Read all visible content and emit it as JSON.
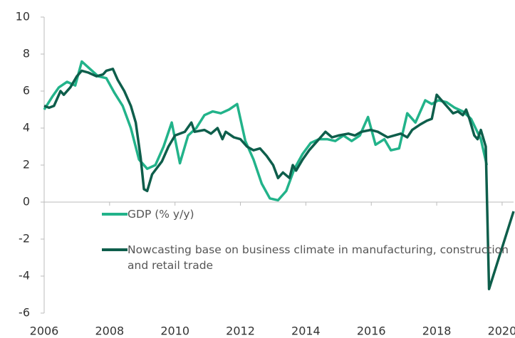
{
  "chart_data": {
    "type": "line",
    "xlim": [
      2006,
      2020.35
    ],
    "xticks": [
      2006,
      2008,
      2010,
      2012,
      2014,
      2016,
      2018,
      2020
    ],
    "ylim": [
      -6,
      10
    ],
    "yticks": [
      -6,
      -4,
      -2,
      0,
      2,
      4,
      6,
      8,
      10
    ],
    "legend": "inside",
    "series": [
      {
        "name": "GDP (% y/y)",
        "color": "#22b38a",
        "x": [
          2006.0,
          2006.25,
          2006.45,
          2006.7,
          2006.95,
          2007.15,
          2007.4,
          2007.65,
          2007.9,
          2008.15,
          2008.4,
          2008.65,
          2008.9,
          2009.15,
          2009.4,
          2009.65,
          2009.9,
          2010.15,
          2010.4,
          2010.65,
          2010.9,
          2011.15,
          2011.4,
          2011.65,
          2011.9,
          2012.15,
          2012.4,
          2012.65,
          2012.9,
          2013.15,
          2013.4,
          2013.65,
          2013.9,
          2014.15,
          2014.4,
          2014.65,
          2014.9,
          2015.15,
          2015.4,
          2015.65,
          2015.9,
          2016.13,
          2016.4,
          2016.6,
          2016.85,
          2017.1,
          2017.35,
          2017.65,
          2017.85,
          2018.05,
          2018.3,
          2018.55,
          2018.8,
          2019.05,
          2019.35,
          2019.53
        ],
        "values": [
          5.0,
          5.7,
          6.2,
          6.5,
          6.3,
          7.6,
          7.2,
          6.8,
          6.7,
          5.9,
          5.2,
          4.0,
          2.3,
          1.8,
          2.0,
          3.0,
          4.3,
          2.1,
          3.6,
          4.0,
          4.7,
          4.9,
          4.8,
          5.0,
          5.3,
          3.3,
          2.3,
          1.0,
          0.2,
          0.1,
          0.6,
          1.8,
          2.6,
          3.2,
          3.4,
          3.4,
          3.3,
          3.6,
          3.3,
          3.6,
          4.6,
          3.1,
          3.4,
          2.8,
          2.9,
          4.8,
          4.3,
          5.5,
          5.3,
          5.5,
          5.4,
          5.1,
          4.9,
          4.5,
          3.4,
          2.0
        ]
      },
      {
        "name": "Nowcasting base on business climate in manufacturing, construction and retail trade",
        "color": "#0e5e4b",
        "x": [
          2006.0,
          2006.15,
          2006.3,
          2006.5,
          2006.6,
          2006.8,
          2007.0,
          2007.15,
          2007.35,
          2007.6,
          2007.8,
          2007.9,
          2008.1,
          2008.25,
          2008.45,
          2008.65,
          2008.8,
          2008.95,
          2009.05,
          2009.15,
          2009.3,
          2009.6,
          2009.8,
          2010.0,
          2010.3,
          2010.5,
          2010.6,
          2010.9,
          2011.1,
          2011.3,
          2011.45,
          2011.55,
          2011.8,
          2012.0,
          2012.2,
          2012.4,
          2012.6,
          2012.8,
          2013.0,
          2013.15,
          2013.3,
          2013.5,
          2013.6,
          2013.7,
          2013.9,
          2014.1,
          2014.3,
          2014.5,
          2014.6,
          2014.8,
          2015.0,
          2015.3,
          2015.5,
          2015.7,
          2015.98,
          2016.2,
          2016.5,
          2016.9,
          2017.1,
          2017.25,
          2017.5,
          2017.7,
          2017.85,
          2018.0,
          2018.15,
          2018.35,
          2018.5,
          2018.65,
          2018.8,
          2018.9,
          2019.0,
          2019.15,
          2019.25,
          2019.35,
          2019.5,
          2019.6,
          2020.35
        ],
        "values": [
          5.2,
          5.1,
          5.2,
          6.0,
          5.8,
          6.2,
          6.8,
          7.1,
          7.0,
          6.8,
          6.9,
          7.1,
          7.2,
          6.6,
          6.0,
          5.2,
          4.3,
          2.4,
          0.7,
          0.6,
          1.5,
          2.2,
          3.0,
          3.6,
          3.8,
          4.3,
          3.8,
          3.9,
          3.7,
          4.0,
          3.4,
          3.8,
          3.5,
          3.4,
          3.0,
          2.8,
          2.9,
          2.5,
          2.0,
          1.3,
          1.6,
          1.3,
          2.0,
          1.7,
          2.3,
          2.8,
          3.2,
          3.6,
          3.8,
          3.5,
          3.6,
          3.7,
          3.6,
          3.8,
          3.9,
          3.8,
          3.5,
          3.7,
          3.5,
          3.9,
          4.2,
          4.4,
          4.5,
          5.8,
          5.5,
          5.1,
          4.8,
          4.9,
          4.7,
          5.0,
          4.5,
          3.6,
          3.4,
          3.9,
          3.0,
          -4.7,
          -0.5
        ]
      }
    ]
  }
}
